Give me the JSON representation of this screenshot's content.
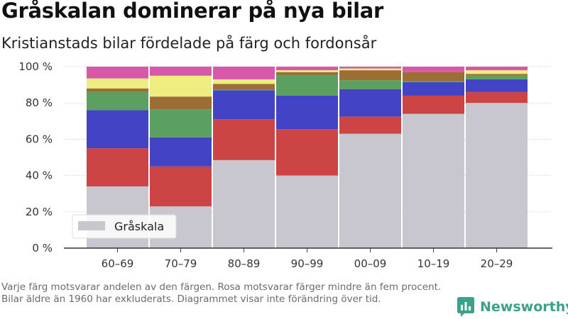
{
  "title": "Gråskalan dominerar på nya bilar",
  "subtitle": "Kristianstads bilar fördelade på färg och fordonsår",
  "footnote": "Varje färg motsvarar andelen av den färgen. Rosa motsvarar färger mindre än fem procent. Bilar äldre än 1960 har exkluderats. Diagrammet visar inte förändring över tid.",
  "brand": {
    "name": "Newsworthy"
  },
  "chart_data": {
    "type": "bar",
    "stacked": true,
    "categories": [
      "60–69",
      "70–79",
      "80–89",
      "90–99",
      "00–09",
      "10–19",
      "20–29"
    ],
    "y_tick_labels": [
      "0 %",
      "20 %",
      "40 %",
      "60 %",
      "80 %",
      "100 %"
    ],
    "ylim": [
      0,
      100
    ],
    "grid": true,
    "legend": {
      "position": "bottom-left",
      "entries": [
        "Gråskala"
      ]
    },
    "series": [
      {
        "name": "Gråskala",
        "color": "#c8c7cf",
        "values": [
          34,
          23,
          48.5,
          40,
          63,
          74,
          80
        ]
      },
      {
        "color": "#cc4444",
        "values": [
          21,
          22,
          22.5,
          25.5,
          9.5,
          10,
          6
        ]
      },
      {
        "color": "#4343c6",
        "values": [
          21,
          16,
          16,
          18.5,
          15,
          7.5,
          7
        ]
      },
      {
        "color": "#5ba061",
        "values": [
          10,
          15.5,
          0.5,
          11.5,
          5,
          0.5,
          2
        ]
      },
      {
        "color": "#9a6e35",
        "values": [
          2,
          7,
          3,
          1.5,
          5.5,
          5,
          1
        ]
      },
      {
        "color": "#eeee80",
        "values": [
          5.5,
          11.5,
          2.5,
          1,
          1,
          0,
          2
        ]
      },
      {
        "color": "#d758a8",
        "values": [
          6.5,
          5,
          7,
          2,
          1,
          3,
          2
        ]
      }
    ]
  }
}
